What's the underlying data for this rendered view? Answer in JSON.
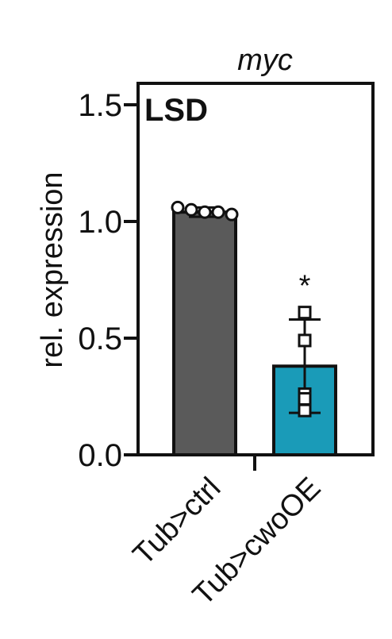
{
  "chart_data": {
    "type": "bar",
    "title": "myc",
    "panel_label": "LSD",
    "ylabel": "rel. expression",
    "ylim": [
      0,
      1.6
    ],
    "yticks": [
      0.0,
      0.5,
      1.0,
      1.5
    ],
    "ytick_labels": [
      "0.0",
      "0.5",
      "1.0",
      "1.5"
    ],
    "categories": [
      "Tub>ctrl",
      "Tub>cwoOE"
    ],
    "values": [
      1.04,
      0.38
    ],
    "errors": [
      0.02,
      0.2
    ],
    "bar_colors": [
      "#5a5a5a",
      "#1a9bb8"
    ],
    "points": [
      [
        1.06,
        1.05,
        1.04,
        1.04,
        1.03
      ],
      [
        0.61,
        0.49,
        0.26,
        0.24,
        0.19
      ]
    ],
    "point_markers": [
      "circle",
      "square"
    ],
    "significance": [
      "",
      "*"
    ]
  }
}
